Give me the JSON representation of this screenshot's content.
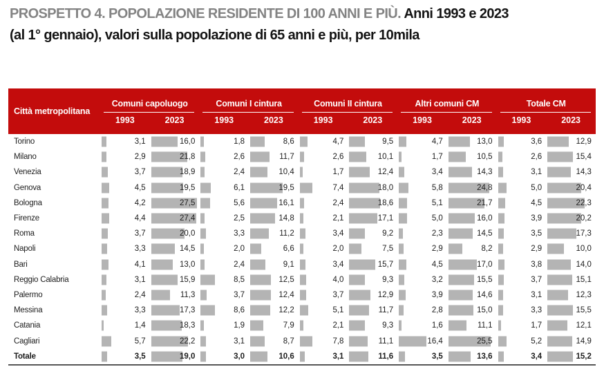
{
  "page": {
    "accent_red": "#c30c0c",
    "bar_gray": "#b4b4b4",
    "title_gray": "#838383"
  },
  "title": {
    "caption_gray": "PROSPETTO 4. POPOLAZIONE RESIDENTE DI 100 ANNI E PIÙ.",
    "caption_black": "Anni 1993 e 2023",
    "caption_line2": "(al 1° gennaio), valori sulla popolazione di 65 anni e più, per 10mila"
  },
  "chart_data": {
    "type": "table",
    "title": "PROSPETTO 4. POPOLAZIONE RESIDENTE DI 100 ANNI E PIÙ. Anni 1993 e 2023 (al 1° gennaio), valori sulla popolazione di 65 anni e più, per 10mila",
    "row_header": "Città metropolitana",
    "column_groups": [
      "Comuni capoluogo",
      "Comuni I cintura",
      "Comuni II cintura",
      "Altri comuni CM",
      "Totale CM"
    ],
    "years": [
      "1993",
      "2023"
    ],
    "unit": "valori per 10mila sulla popolazione di 65 anni e più",
    "decimal_separator": ",",
    "bar_value_max": 27.5,
    "rows": [
      {
        "name": "Torino",
        "bold": false,
        "values": [
          3.1,
          16.0,
          1.8,
          8.6,
          4.7,
          9.5,
          4.7,
          13.0,
          3.6,
          12.9
        ]
      },
      {
        "name": "Milano",
        "bold": false,
        "values": [
          2.9,
          21.8,
          2.6,
          11.7,
          2.6,
          10.1,
          1.7,
          10.5,
          2.6,
          15.4
        ]
      },
      {
        "name": "Venezia",
        "bold": false,
        "values": [
          3.7,
          18.9,
          2.4,
          10.4,
          1.7,
          12.4,
          3.4,
          14.3,
          3.1,
          14.3
        ]
      },
      {
        "name": "Genova",
        "bold": false,
        "values": [
          4.5,
          19.5,
          6.1,
          19.5,
          7.4,
          18.0,
          5.8,
          24.8,
          5.0,
          20.4
        ]
      },
      {
        "name": "Bologna",
        "bold": false,
        "values": [
          4.2,
          27.5,
          5.6,
          16.1,
          2.4,
          18.6,
          5.1,
          21.7,
          4.5,
          22.3
        ]
      },
      {
        "name": "Firenze",
        "bold": false,
        "values": [
          4.4,
          27.4,
          2.5,
          14.8,
          2.1,
          17.1,
          5.0,
          16.0,
          3.9,
          20.2
        ]
      },
      {
        "name": "Roma",
        "bold": false,
        "values": [
          3.7,
          20.0,
          3.3,
          11.2,
          3.4,
          9.2,
          2.3,
          14.5,
          3.5,
          17.3
        ]
      },
      {
        "name": "Napoli",
        "bold": false,
        "values": [
          3.3,
          14.5,
          2.0,
          6.6,
          2.0,
          7.5,
          2.9,
          8.2,
          2.9,
          10.0
        ]
      },
      {
        "name": "Bari",
        "bold": false,
        "values": [
          4.1,
          13.0,
          2.4,
          9.1,
          3.4,
          15.7,
          4.5,
          17.0,
          3.8,
          14.0
        ]
      },
      {
        "name": "Reggio Calabria",
        "bold": false,
        "values": [
          3.1,
          15.9,
          8.5,
          12.5,
          4.0,
          9.3,
          3.2,
          15.5,
          3.7,
          15.1
        ]
      },
      {
        "name": "Palermo",
        "bold": false,
        "values": [
          2.4,
          11.3,
          3.7,
          12.4,
          3.7,
          12.9,
          3.9,
          14.6,
          3.1,
          12.3
        ]
      },
      {
        "name": "Messina",
        "bold": false,
        "values": [
          3.3,
          17.3,
          8.6,
          12.2,
          5.1,
          11.7,
          2.8,
          15.0,
          3.3,
          15.5
        ]
      },
      {
        "name": "Catania",
        "bold": false,
        "values": [
          1.4,
          18.3,
          1.9,
          7.9,
          2.1,
          9.3,
          1.6,
          11.1,
          1.7,
          12.1
        ]
      },
      {
        "name": "Cagliari",
        "bold": false,
        "values": [
          5.7,
          22.2,
          3.1,
          8.7,
          7.8,
          11.1,
          16.4,
          25.5,
          5.2,
          14.9
        ]
      },
      {
        "name": "Totale",
        "bold": true,
        "values": [
          3.5,
          19.0,
          3.0,
          10.6,
          3.1,
          11.6,
          3.5,
          13.6,
          3.4,
          15.2
        ]
      }
    ]
  }
}
